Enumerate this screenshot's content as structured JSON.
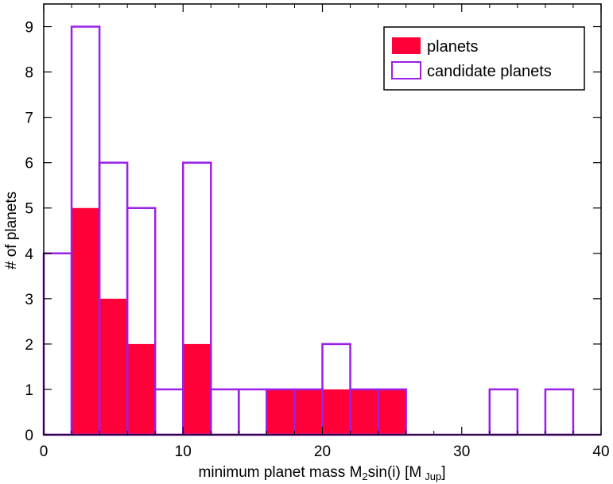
{
  "chart_data": {
    "type": "bar",
    "xlabel": "minimum planet mass M",
    "xlabel_sub": "2",
    "xlabel_mid": "sin(i) [M",
    "xlabel_unit": "Jup",
    "xlabel_end": "]",
    "ylabel": "# of planets",
    "xlim": [
      0,
      40
    ],
    "ylim": [
      0,
      9.5
    ],
    "x_ticks": [
      "0",
      "10",
      "20",
      "30",
      "40"
    ],
    "y_ticks": [
      "0",
      "1",
      "2",
      "3",
      "4",
      "5",
      "6",
      "7",
      "8",
      "9"
    ],
    "legend_position": "top-right",
    "bin_width": 2,
    "bin_starts": [
      0,
      2,
      4,
      6,
      8,
      10,
      12,
      14,
      16,
      18,
      20,
      22,
      24,
      26,
      28,
      30,
      32,
      34,
      36,
      38
    ],
    "series": [
      {
        "name": "planets",
        "style": "filled",
        "color": "#ff0038",
        "values": [
          0,
          5,
          3,
          2,
          0,
          2,
          0,
          0,
          1,
          1,
          1,
          1,
          1,
          0,
          0,
          0,
          0,
          0,
          0,
          0
        ]
      },
      {
        "name": "candidate planets",
        "style": "outline",
        "color": "#9b1fe8",
        "values": [
          4,
          9,
          6,
          5,
          1,
          6,
          1,
          1,
          1,
          1,
          2,
          1,
          1,
          0,
          0,
          0,
          1,
          0,
          1,
          0
        ]
      }
    ]
  }
}
